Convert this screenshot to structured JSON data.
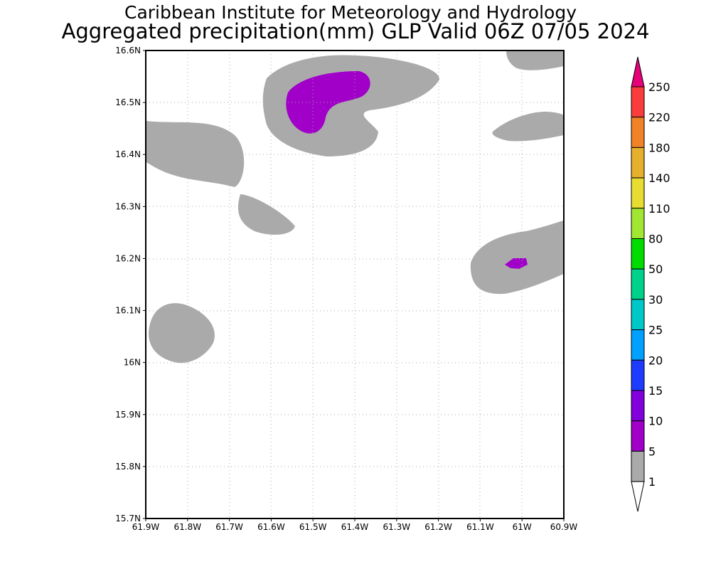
{
  "title": {
    "line1": "Caribbean Institute for Meteorology and Hydrology",
    "line2": "Aggregated precipitation(mm) GLP Valid 06Z 07/05 2024"
  },
  "axes": {
    "lat_labels": [
      "16.6N",
      "16.5N",
      "16.4N",
      "16.3N",
      "16.2N",
      "16.1N",
      "16N",
      "15.9N",
      "15.8N",
      "15.7N"
    ],
    "lon_labels": [
      "61.9W",
      "61.8W",
      "61.7W",
      "61.6W",
      "61.5W",
      "61.4W",
      "61.3W",
      "61.2W",
      "61.1W",
      "61W",
      "60.9W"
    ]
  },
  "legend": {
    "labels": [
      "250",
      "220",
      "180",
      "140",
      "110",
      "80",
      "50",
      "30",
      "25",
      "20",
      "15",
      "10",
      "5",
      "1"
    ],
    "colors": [
      "#fa3c3c",
      "#f08228",
      "#e6af2d",
      "#e6dc32",
      "#a0e632",
      "#00dc00",
      "#00d28c",
      "#00c8c8",
      "#00a0ff",
      "#1e3cff",
      "#8200dc",
      "#a000c8",
      "#aaaaaa"
    ],
    "over_color": "#e6007a",
    "under_color": "#ffffff"
  }
}
